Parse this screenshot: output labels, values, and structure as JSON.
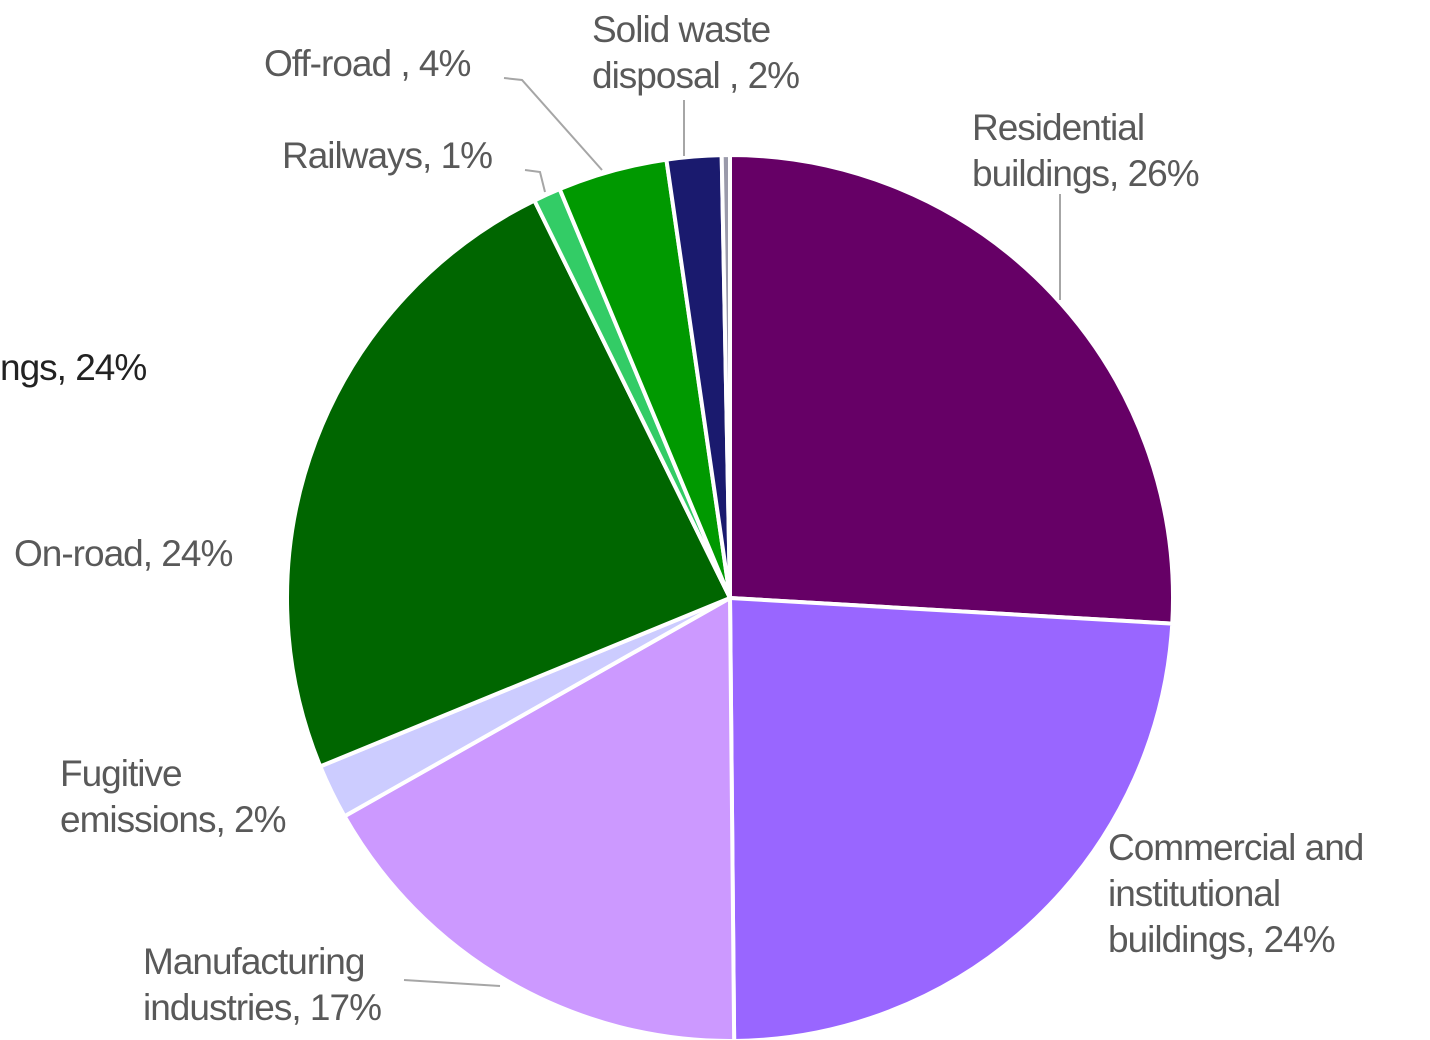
{
  "chart_data": {
    "type": "pie",
    "title": "",
    "slices": [
      {
        "name": "Residential buildings",
        "value": 26,
        "label_lines": [
          "Residential",
          "buildings, 26%"
        ],
        "color": "#660066"
      },
      {
        "name": "Commercial and institutional buildings",
        "value": 24,
        "label_lines": [
          "Commercial and",
          "institutional",
          "buildings, 24%"
        ],
        "color": "#9966ff"
      },
      {
        "name": "Manufacturing industries",
        "value": 17,
        "label_lines": [
          "Manufacturing",
          "industries, 17%"
        ],
        "color": "#cc99ff"
      },
      {
        "name": "Fugitive emissions",
        "value": 2,
        "label_lines": [
          "Fugitive",
          "emissions, 2%"
        ],
        "color": "#ccccff"
      },
      {
        "name": "On-road",
        "value": 24,
        "label_lines": [
          "On-road, 24%"
        ],
        "color": "#006600"
      },
      {
        "name": "Railways",
        "value": 1,
        "label_lines": [
          "Railways, 1%"
        ],
        "color": "#33cc66"
      },
      {
        "name": "Off-road",
        "value": 4,
        "label_lines": [
          "Off-road , 4%"
        ],
        "color": "#009900"
      },
      {
        "name": "Solid waste disposal",
        "value": 2,
        "label_lines": [
          "Solid waste",
          "disposal , 2%"
        ],
        "color": "#1a1a6e"
      },
      {
        "name": "",
        "value": 0.3,
        "label_lines": [],
        "color": "#9a9aaa"
      }
    ],
    "cropped_label": "ngs, 24%"
  }
}
